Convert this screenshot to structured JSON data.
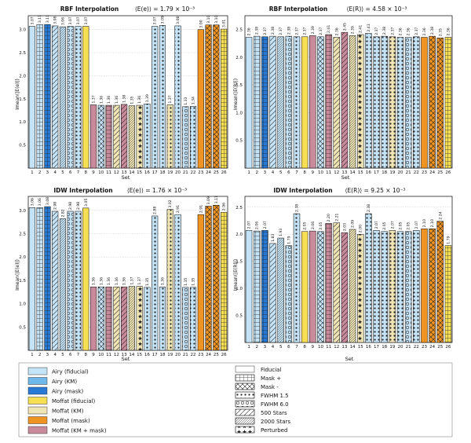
{
  "chart_data": [
    {
      "type": "bar",
      "panel": "top-left",
      "title": "RBF Interpolation",
      "subtitle": "⟨E(e)⟩ = 1.79 × 10⁻³",
      "xlabel": "Set",
      "ylabel": "Imean(|E(e)|)",
      "categories": [
        "1",
        "2",
        "3",
        "4",
        "5",
        "6",
        "7",
        "8",
        "9",
        "10",
        "11",
        "12",
        "13",
        "14",
        "15",
        "16",
        "17",
        "18",
        "19",
        "20",
        "21",
        "22",
        "23",
        "24",
        "25",
        "26"
      ],
      "values": [
        3.07,
        3.11,
        3.11,
        3.08,
        3.06,
        3.07,
        3.07,
        3.07,
        1.37,
        1.36,
        1.36,
        1.36,
        1.38,
        1.35,
        1.36,
        1.39,
        3.07,
        3.09,
        1.37,
        3.08,
        1.33,
        1.34,
        3.0,
        3.1,
        3.1,
        3.01
      ],
      "ylim": [
        0,
        3.3
      ],
      "yticks": [
        "0.5",
        "1.0",
        "1.5",
        "2.0",
        "2.5",
        "3.0"
      ]
    },
    {
      "type": "bar",
      "panel": "top-right",
      "title": "RBF Interpolation",
      "subtitle": "⟨E(R)⟩ = 4.58 × 10⁻³",
      "xlabel": "Set",
      "ylabel": "Imean(|E(R)|)",
      "categories": [
        "1",
        "2",
        "3",
        "4",
        "5",
        "6",
        "7",
        "8",
        "9",
        "10",
        "11",
        "12",
        "13",
        "14",
        "15",
        "16",
        "17",
        "18",
        "19",
        "20",
        "21",
        "22",
        "23",
        "24",
        "25",
        "26"
      ],
      "values": [
        2.36,
        2.38,
        2.37,
        2.38,
        2.37,
        2.38,
        2.37,
        2.37,
        2.39,
        2.37,
        2.41,
        2.36,
        2.45,
        2.39,
        2.41,
        2.43,
        2.37,
        2.38,
        2.37,
        2.36,
        2.36,
        2.37,
        2.36,
        2.38,
        2.35,
        2.36
      ],
      "ylim": [
        0,
        2.75
      ],
      "yticks": [
        "0.5",
        "1.0",
        "1.5",
        "2.0",
        "2.5"
      ]
    },
    {
      "type": "bar",
      "panel": "bottom-left",
      "title": "IDW Interpolation",
      "subtitle": "⟨E(e)⟩ = 1.76 × 10⁻³",
      "xlabel": "Set",
      "ylabel": "Imean(|E(e)|)",
      "categories": [
        "1",
        "2",
        "3",
        "4",
        "5",
        "6",
        "7",
        "8",
        "9",
        "10",
        "11",
        "12",
        "13",
        "14",
        "15",
        "16",
        "17",
        "18",
        "19",
        "20",
        "21",
        "22",
        "23",
        "24",
        "25",
        "26"
      ],
      "values": [
        3.06,
        3.06,
        3.08,
        2.98,
        2.82,
        2.98,
        2.98,
        3.05,
        1.36,
        1.36,
        1.36,
        1.36,
        1.36,
        1.37,
        1.37,
        1.35,
        2.88,
        1.36,
        3.02,
        2.91,
        1.35,
        1.35,
        2.91,
        3.09,
        3.11,
        2.96
      ],
      "ylim": [
        0,
        3.3
      ],
      "yticks": [
        "0.5",
        "1.0",
        "1.5",
        "2.0",
        "2.5",
        "3.0"
      ]
    },
    {
      "type": "bar",
      "panel": "bottom-right",
      "title": "IDW Interpolation",
      "subtitle": "⟨E(R)⟩ = 9.25 × 10⁻³",
      "xlabel": "Set",
      "ylabel": "Imean(|E(R)|)",
      "categories": [
        "1",
        "2",
        "3",
        "4",
        "5",
        "6",
        "7",
        "8",
        "9",
        "10",
        "11",
        "12",
        "13",
        "14",
        "15",
        "16",
        "17",
        "18",
        "19",
        "20",
        "21",
        "22",
        "23",
        "24",
        "25",
        "26"
      ],
      "values": [
        2.07,
        2.06,
        2.07,
        1.83,
        1.93,
        1.79,
        2.38,
        2.05,
        2.06,
        2.05,
        2.2,
        2.21,
        2.03,
        2.09,
        2.0,
        2.38,
        2.07,
        2.05,
        2.07,
        2.05,
        2.05,
        2.07,
        2.1,
        2.1,
        2.24,
        1.79
      ],
      "ylim": [
        0,
        2.7
      ],
      "yticks": [
        "0.5",
        "1.0",
        "1.5",
        "2.0",
        "2.5"
      ]
    }
  ],
  "legend": {
    "colors": [
      {
        "label": "Airy (fiducial)",
        "color": "#c5e3f6"
      },
      {
        "label": "Airy (KM)",
        "color": "#6eb8ea"
      },
      {
        "label": "Airy (mask)",
        "color": "#2779d4"
      },
      {
        "label": "Moffat (fiducial)",
        "color": "#f7df54"
      },
      {
        "label": "Moffat (KM)",
        "color": "#efe4b4"
      },
      {
        "label": "Moffat (mask)",
        "color": "#ef9322"
      },
      {
        "label": "Moffat (KM + mask)",
        "color": "#c98a9b"
      }
    ],
    "hatches": [
      {
        "label": "Fiducial",
        "pattern": "none"
      },
      {
        "label": "Mask +",
        "pattern": "grid"
      },
      {
        "label": "Mask -",
        "pattern": "xgrid"
      },
      {
        "label": "FWHM 1.5",
        "pattern": "dots"
      },
      {
        "label": "FWHM 6.0",
        "pattern": "rings"
      },
      {
        "label": "500 Stars",
        "pattern": "slash"
      },
      {
        "label": "2000 Stars",
        "pattern": "slash-dense"
      },
      {
        "label": "Perturbed",
        "pattern": "stars"
      }
    ]
  },
  "bar_styles": {
    "colors": [
      "#c5e3f6",
      "#c5e3f6",
      "#2779d4",
      "#c5e3f6",
      "#c5e3f6",
      "#c5e3f6",
      "#c5e3f6",
      "#f7df54",
      "#c98a9b",
      "#c5e3f6",
      "#c98a9b",
      "#efe4b4",
      "#c98a9b",
      "#efe4b4",
      "#efe4b4",
      "#c5e3f6",
      "#c5e3f6",
      "#c5e3f6",
      "#efe4b4",
      "#c5e3f6",
      "#c5e3f6",
      "#c5e3f6",
      "#ef9322",
      "#ef9322",
      "#ef9322",
      "#f7df54"
    ],
    "hatches": [
      "none",
      "grid",
      "grid",
      "slash",
      "slash-dense",
      "rings",
      "dots",
      "none",
      "none",
      "xgrid",
      "grid",
      "slash",
      "slash",
      "slash-dense",
      "stars",
      "dots",
      "dots",
      "dots",
      "dots",
      "dots",
      "rings",
      "dots",
      "none",
      "xgrid",
      "xgrid",
      "grid"
    ]
  }
}
